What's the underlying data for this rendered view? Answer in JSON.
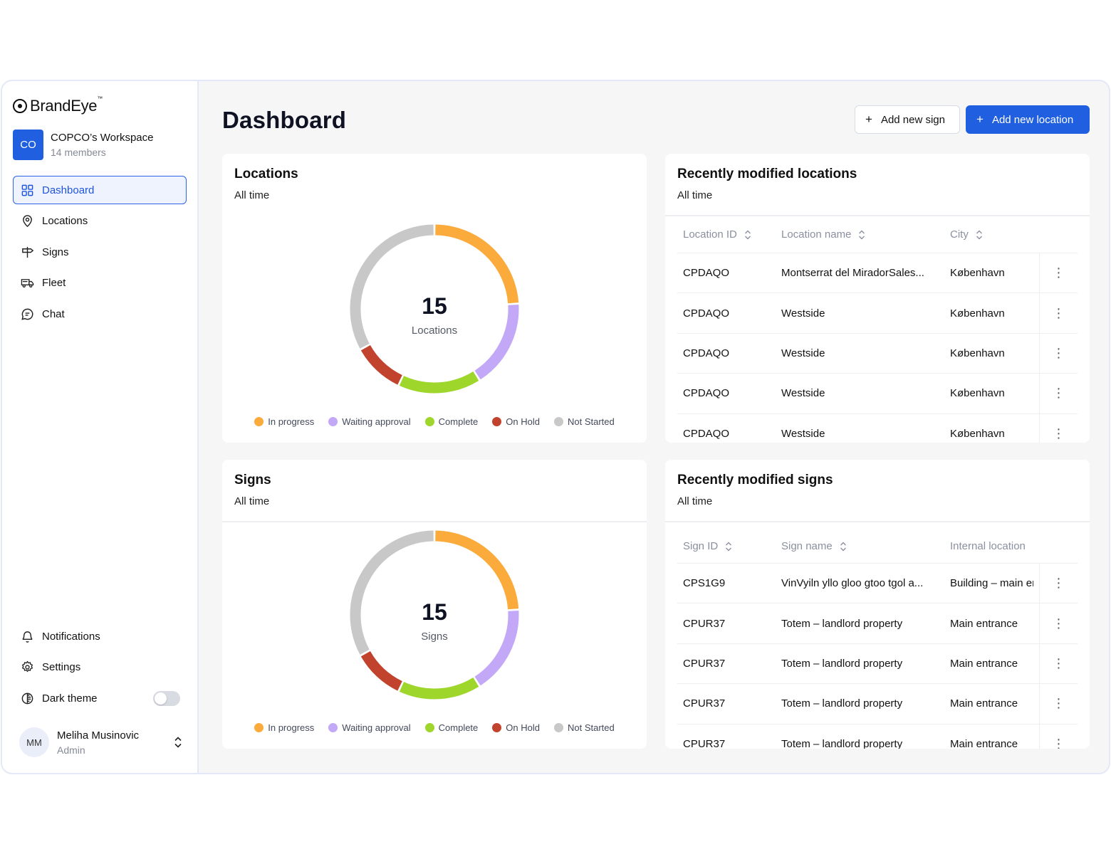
{
  "app": {
    "logo_text": "BrandEye",
    "logo_tm": "™"
  },
  "workspace": {
    "initials": "CO",
    "name": "COPCO’s Workspace",
    "members": "14 members"
  },
  "nav": {
    "items": [
      {
        "label": "Dashboard",
        "icon": "grid-icon",
        "active": true
      },
      {
        "label": "Locations",
        "icon": "map-pin-icon",
        "active": false
      },
      {
        "label": "Signs",
        "icon": "signpost-icon",
        "active": false
      },
      {
        "label": "Fleet",
        "icon": "truck-icon",
        "active": false
      },
      {
        "label": "Chat",
        "icon": "chat-icon",
        "active": false
      }
    ],
    "bottom": [
      {
        "label": "Notifications",
        "icon": "bell-icon"
      },
      {
        "label": "Settings",
        "icon": "gear-icon"
      },
      {
        "label": "Dark theme",
        "icon": "half-circle-icon",
        "toggle": false
      }
    ]
  },
  "user": {
    "initials": "MM",
    "name": "Meliha Musinovic",
    "role": "Admin"
  },
  "header": {
    "title": "Dashboard",
    "add_sign": "Add new sign",
    "add_location": "Add new location"
  },
  "colors": {
    "accent": "#1f5fe0",
    "in_progress": "#fbab3c",
    "waiting_approval": "#c2a8f7",
    "complete": "#9fd62b",
    "on_hold": "#c2432d",
    "not_started": "#c8c8c8"
  },
  "locations_card": {
    "title": "Locations",
    "subtitle": "All time",
    "total": "15",
    "total_label": "Locations"
  },
  "signs_card": {
    "title": "Signs",
    "subtitle": "All time",
    "total": "15",
    "total_label": "Signs"
  },
  "legend": [
    "In progress",
    "Waiting approval",
    "Complete",
    "On Hold",
    "Not Started"
  ],
  "chart_data": [
    {
      "type": "pie",
      "categories": [
        "In progress",
        "Waiting approval",
        "Complete",
        "On Hold",
        "Not Started"
      ],
      "values": [
        24,
        17,
        16,
        10,
        33
      ],
      "unit": "%"
    },
    {
      "type": "pie",
      "categories": [
        "In progress",
        "Waiting approval",
        "Complete",
        "On Hold",
        "Not Started"
      ],
      "values": [
        24,
        17,
        16,
        10,
        33
      ],
      "unit": "%"
    }
  ],
  "recent_locations": {
    "title": "Recently modified locations",
    "subtitle": "All time",
    "columns": [
      "Location ID",
      "Location name",
      "City"
    ],
    "rows": [
      [
        "CPDAQO",
        "Montserrat del MiradorSales...",
        "København"
      ],
      [
        "CPDAQO",
        "Westside",
        "København"
      ],
      [
        "CPDAQO",
        "Westside",
        "København"
      ],
      [
        "CPDAQO",
        "Westside",
        "København"
      ],
      [
        "CPDAQO",
        "Westside",
        "København"
      ]
    ]
  },
  "recent_signs": {
    "title": "Recently modified signs",
    "subtitle": "All time",
    "columns": [
      "Sign ID",
      "Sign name",
      "Internal location"
    ],
    "rows": [
      [
        "CPS1G9",
        "VinVyiln yllo gloo gtoo  tgol a...",
        "Building – main entrance"
      ],
      [
        "CPUR37",
        "Totem – landlord property",
        "Main entrance"
      ],
      [
        "CPUR37",
        "Totem – landlord property",
        "Main entrance"
      ],
      [
        "CPUR37",
        "Totem – landlord property",
        "Main entrance"
      ],
      [
        "CPUR37",
        "Totem – landlord property",
        "Main entrance"
      ]
    ]
  }
}
